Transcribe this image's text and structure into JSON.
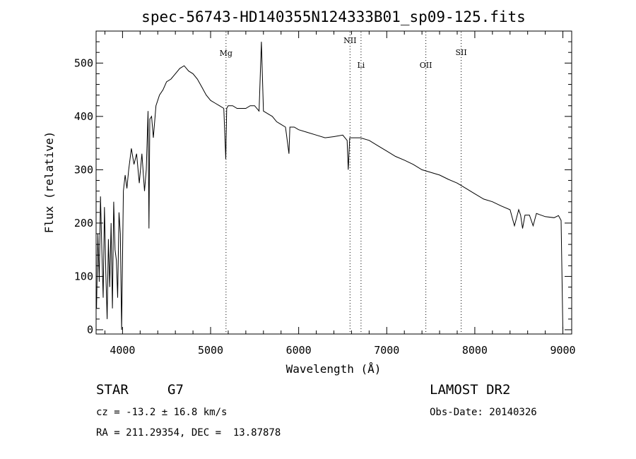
{
  "chart_data": {
    "type": "line",
    "title": "spec-56743-HD140355N124333B01_sp09-125.fits",
    "xlabel": "Wavelength (Å)",
    "ylabel": "Flux (relative)",
    "xlim": [
      3700,
      9100
    ],
    "ylim": [
      -8,
      560
    ],
    "xticks": [
      4000,
      5000,
      6000,
      7000,
      8000,
      9000
    ],
    "yticks": [
      0,
      100,
      200,
      300,
      400,
      500
    ],
    "series": [
      {
        "x": [
          3705,
          3720,
          3735,
          3750,
          3765,
          3780,
          3795,
          3810,
          3825,
          3840,
          3855,
          3870,
          3885,
          3900,
          3915,
          3930,
          3945,
          3960,
          3975,
          3990,
          4010,
          4030,
          4050,
          4070,
          4100,
          4130,
          4160,
          4190,
          4220,
          4250,
          4270,
          4290,
          4300,
          4310,
          4330,
          4350,
          4380,
          4420,
          4460,
          4500,
          4550,
          4600,
          4650,
          4700,
          4750,
          4800,
          4850,
          4900,
          4950,
          5000,
          5050,
          5100,
          5150,
          5172,
          5183,
          5200,
          5250,
          5300,
          5350,
          5400,
          5450,
          5500,
          5550,
          5577,
          5600,
          5650,
          5700,
          5750,
          5800,
          5850,
          5890,
          5900,
          5950,
          6000,
          6100,
          6200,
          6300,
          6400,
          6500,
          6550,
          6563,
          6580,
          6700,
          6800,
          6900,
          7000,
          7100,
          7200,
          7300,
          7400,
          7500,
          7600,
          7700,
          7800,
          7900,
          8000,
          8100,
          8200,
          8300,
          8400,
          8450,
          8498,
          8520,
          8542,
          8570,
          8620,
          8662,
          8700,
          8800,
          8900,
          8950,
          8980,
          9000
        ],
        "y": [
          40,
          180,
          90,
          250,
          150,
          60,
          230,
          110,
          20,
          170,
          80,
          200,
          40,
          240,
          150,
          130,
          60,
          220,
          180,
          0,
          260,
          290,
          265,
          300,
          340,
          310,
          330,
          275,
          330,
          260,
          300,
          410,
          190,
          395,
          400,
          360,
          420,
          440,
          450,
          465,
          470,
          480,
          490,
          495,
          485,
          480,
          470,
          455,
          440,
          430,
          425,
          420,
          415,
          320,
          415,
          420,
          420,
          415,
          415,
          415,
          420,
          420,
          410,
          540,
          410,
          405,
          400,
          390,
          385,
          380,
          330,
          380,
          380,
          375,
          370,
          365,
          360,
          362,
          365,
          355,
          300,
          360,
          360,
          355,
          345,
          335,
          325,
          318,
          310,
          300,
          295,
          290,
          282,
          275,
          265,
          255,
          245,
          240,
          232,
          225,
          195,
          225,
          215,
          190,
          215,
          215,
          195,
          218,
          212,
          210,
          214,
          205,
          0
        ]
      }
    ],
    "annotations": [
      {
        "label": "Mg",
        "x": 5175
      },
      {
        "label": "NII",
        "x": 6583
      },
      {
        "label": "Li",
        "x": 6708
      },
      {
        "label": "OII",
        "x": 7444
      },
      {
        "label": "SII",
        "x": 7845
      }
    ]
  },
  "info": {
    "class": "STAR",
    "subclass": "G7",
    "survey": "LAMOST DR2",
    "velocity": "cz = -13.2 ± 16.8 km/s",
    "obs_date": "Obs-Date: 20140326",
    "coords": "RA = 211.29354, DEC =  13.87878"
  }
}
